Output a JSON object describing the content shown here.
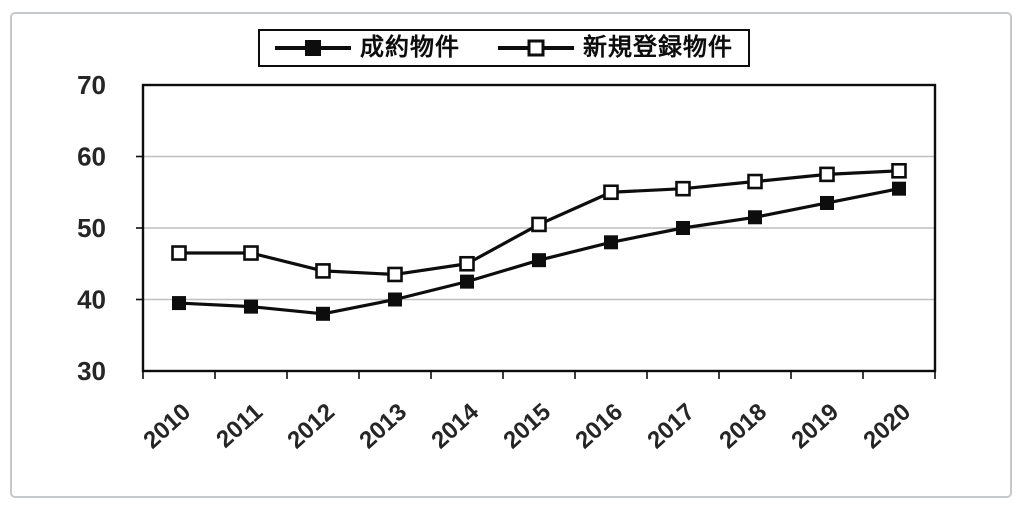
{
  "chart_data": {
    "type": "line",
    "categories": [
      "2010",
      "2011",
      "2012",
      "2013",
      "2014",
      "2015",
      "2016",
      "2017",
      "2018",
      "2019",
      "2020"
    ],
    "series": [
      {
        "name": "成約物件",
        "marker": "filled-square",
        "values": [
          39.5,
          39,
          38,
          40,
          42.5,
          45.5,
          48,
          50,
          51.5,
          53.5,
          55.5
        ]
      },
      {
        "name": "新規登録物件",
        "marker": "open-square",
        "values": [
          46.5,
          46.5,
          44,
          43.5,
          45,
          50.5,
          55,
          55.5,
          56.5,
          57.5,
          58
        ]
      }
    ],
    "title": "",
    "xlabel": "",
    "ylabel": "",
    "ylim": [
      30,
      70
    ],
    "yticks": [
      30,
      40,
      50,
      60,
      70
    ],
    "grid_values": [
      40,
      50,
      60
    ],
    "grid": "horizontal",
    "legend_position": "top-center",
    "colors": {
      "line": "#0d0d0d",
      "marker_fill_open": "#ffffff",
      "grid": "#bfbfbf",
      "tick_label": "#262626",
      "frame_border": "#c6c9cc"
    }
  }
}
